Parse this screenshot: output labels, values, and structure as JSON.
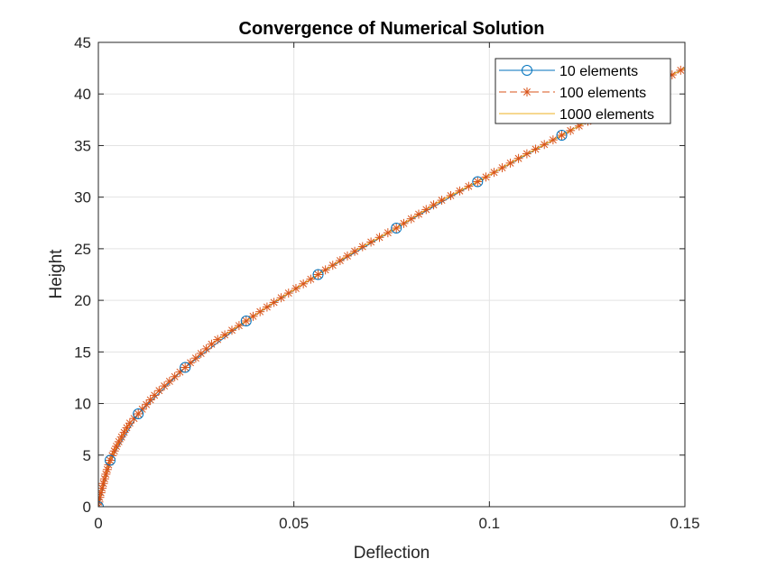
{
  "chart_data": {
    "type": "line",
    "title": "Convergence of Numerical Solution",
    "xlabel": "Deflection",
    "ylabel": "Height",
    "xlim": [
      0,
      0.15
    ],
    "ylim": [
      0,
      45
    ],
    "xticks": [
      0,
      0.05,
      0.1,
      0.15
    ],
    "xtick_labels": [
      "0",
      "0.05",
      "0.1",
      "0.15"
    ],
    "yticks": [
      0,
      5,
      10,
      15,
      20,
      25,
      30,
      35,
      40,
      45
    ],
    "ytick_labels": [
      "0",
      "5",
      "10",
      "15",
      "20",
      "25",
      "30",
      "35",
      "40",
      "45"
    ],
    "grid": true,
    "legend_position": "top-right",
    "curve": {
      "height": [
        0,
        0.5,
        1,
        2,
        3,
        4.5,
        6,
        8,
        9,
        11,
        13.5,
        16,
        18,
        20,
        22.5,
        25,
        27,
        29.5,
        31.6,
        34,
        36.2,
        38,
        40.5,
        43,
        45
      ],
      "deflection": [
        0,
        0.00012,
        0.0004,
        0.0011,
        0.0018,
        0.003,
        0.0048,
        0.0078,
        0.0102,
        0.0148,
        0.0222,
        0.0297,
        0.0378,
        0.0457,
        0.0562,
        0.0666,
        0.0762,
        0.0868,
        0.0975,
        0.1086,
        0.1195,
        0.1284,
        0.1402,
        0.1523,
        0.1618
      ]
    },
    "series": [
      {
        "name": "10 elements",
        "color": "#0072BD",
        "marker": "circle",
        "line_style": "solid",
        "marker_count": 10
      },
      {
        "name": "100 elements",
        "color": "#D95319",
        "marker": "asterisk",
        "line_style": "dashed",
        "marker_count": 100
      },
      {
        "name": "1000 elements",
        "color": "#EDB120",
        "marker": "none",
        "line_style": "solid",
        "marker_count": 0
      }
    ]
  }
}
